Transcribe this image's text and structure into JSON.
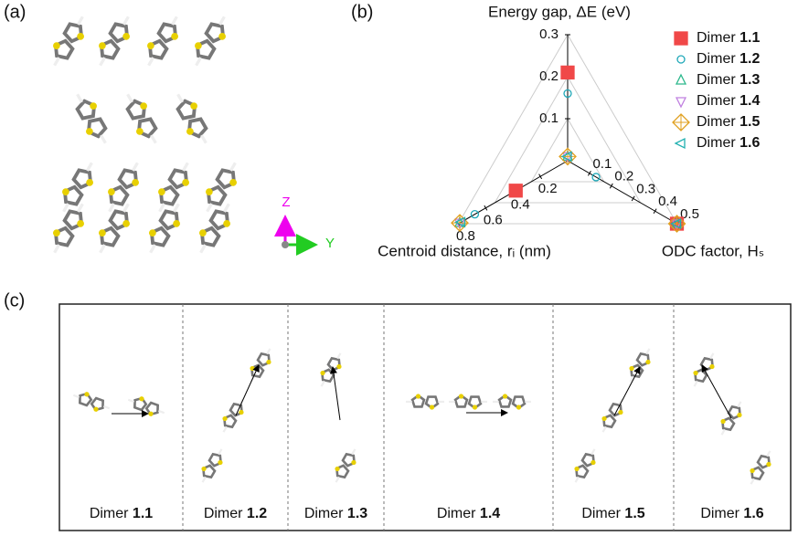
{
  "panels": [
    "(a)",
    "(b)",
    "(c)"
  ],
  "crystal_axes": [
    "Z",
    "Y"
  ],
  "dimer_labels": [
    "Dimer 1.1",
    "Dimer 1.2",
    "Dimer 1.3",
    "Dimer 1.4",
    "Dimer 1.5",
    "Dimer 1.6"
  ],
  "chart_data": {
    "type": "radar",
    "axes": [
      {
        "label": "Energy gap, ΔE (eV)",
        "lim": [
          0,
          0.3
        ],
        "ticks": [
          0.1,
          0.2,
          0.3
        ]
      },
      {
        "label": "ODC factor, Hₛ",
        "lim": [
          0,
          0.5
        ],
        "ticks": [
          0.1,
          0.2,
          0.3,
          0.4,
          0.5
        ]
      },
      {
        "label": "Centroid distance, rᵢ (nm)",
        "lim": [
          0,
          0.8
        ],
        "ticks": [
          0.2,
          0.4,
          0.6,
          0.8
        ]
      }
    ],
    "grid": true,
    "legend": "right",
    "series": [
      {
        "name": "Dimer 1.1",
        "color": "#f04848",
        "marker": "square",
        "values": [
          0.21,
          0.5,
          0.38
        ]
      },
      {
        "name": "Dimer 1.2",
        "color": "#1fa8b8",
        "marker": "circle",
        "values": [
          0.16,
          0.13,
          0.68
        ]
      },
      {
        "name": "Dimer 1.3",
        "color": "#2cb88c",
        "marker": "triangle-up",
        "values": [
          0.01,
          0.5,
          0.79
        ]
      },
      {
        "name": "Dimer 1.4",
        "color": "#c080e0",
        "marker": "triangle-down",
        "values": [
          0.01,
          0.5,
          0.79
        ]
      },
      {
        "name": "Dimer 1.5",
        "color": "#e0a020",
        "marker": "diamond",
        "values": [
          0.01,
          0.5,
          0.79
        ]
      },
      {
        "name": "Dimer 1.6",
        "color": "#20b0b0",
        "marker": "triangle-left",
        "values": [
          0.01,
          0.5,
          0.78
        ]
      }
    ]
  }
}
